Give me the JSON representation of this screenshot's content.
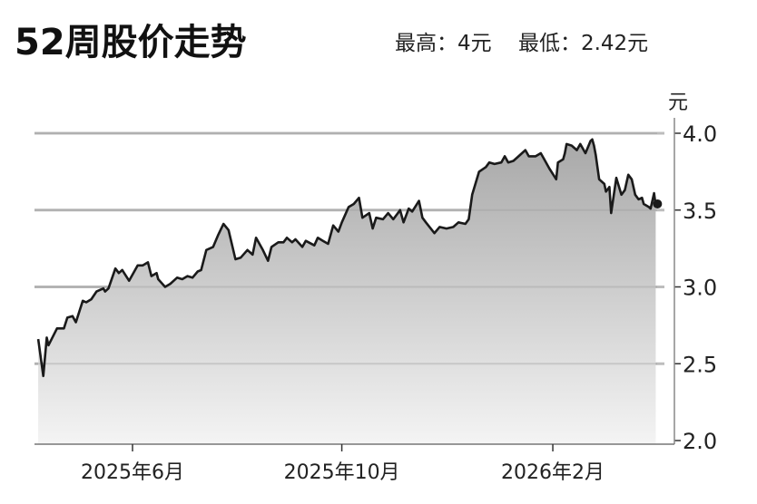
{
  "header": {
    "title": "52周股价走势",
    "high_label": "最高：4元",
    "low_label": "最低：2.42元"
  },
  "chart_data": {
    "type": "area",
    "title": "52周股价走势",
    "ylabel": "元",
    "ylim": [
      2.0,
      4.0
    ],
    "yticks": [
      "4.0",
      "3.5",
      "3.0",
      "2.5",
      "2.0"
    ],
    "ytick_values": [
      4.0,
      3.5,
      3.0,
      2.5,
      2.0
    ],
    "xticks": [
      {
        "date": "2025-06-01",
        "label": "2025年6月"
      },
      {
        "date": "2025-10-01",
        "label": "2025年10月"
      },
      {
        "date": "2026-02-01",
        "label": "2026年2月"
      }
    ],
    "grid": true,
    "colors": {
      "line": "#1a1a1a",
      "fill_top": "#a8a8a8",
      "fill_bottom": "#f4f4f4",
      "grid": "#bdbdbd"
    },
    "last_point": {
      "date": "2026-04-03",
      "value": 3.54
    },
    "points": [
      [
        "2025-04-07",
        2.66
      ],
      [
        "2025-04-10",
        2.42
      ],
      [
        "2025-04-12",
        2.67
      ],
      [
        "2025-04-13",
        2.62
      ],
      [
        "2025-04-18",
        2.73
      ],
      [
        "2025-04-22",
        2.73
      ],
      [
        "2025-04-24",
        2.8
      ],
      [
        "2025-04-27",
        2.81
      ],
      [
        "2025-04-29",
        2.77
      ],
      [
        "2025-05-03",
        2.91
      ],
      [
        "2025-05-05",
        2.9
      ],
      [
        "2025-05-08",
        2.92
      ],
      [
        "2025-05-11",
        2.97
      ],
      [
        "2025-05-15",
        2.99
      ],
      [
        "2025-05-16",
        2.97
      ],
      [
        "2025-05-18",
        2.99
      ],
      [
        "2025-05-22",
        3.12
      ],
      [
        "2025-05-24",
        3.09
      ],
      [
        "2025-05-26",
        3.11
      ],
      [
        "2025-05-30",
        3.04
      ],
      [
        "2025-06-04",
        3.14
      ],
      [
        "2025-06-07",
        3.14
      ],
      [
        "2025-06-10",
        3.16
      ],
      [
        "2025-06-12",
        3.07
      ],
      [
        "2025-06-15",
        3.09
      ],
      [
        "2025-06-16",
        3.05
      ],
      [
        "2025-06-20",
        3.0
      ],
      [
        "2025-06-23",
        3.02
      ],
      [
        "2025-06-27",
        3.06
      ],
      [
        "2025-06-30",
        3.05
      ],
      [
        "2025-07-03",
        3.07
      ],
      [
        "2025-07-06",
        3.06
      ],
      [
        "2025-07-09",
        3.1
      ],
      [
        "2025-07-11",
        3.11
      ],
      [
        "2025-07-14",
        3.24
      ],
      [
        "2025-07-18",
        3.26
      ],
      [
        "2025-07-21",
        3.34
      ],
      [
        "2025-07-24",
        3.41
      ],
      [
        "2025-07-27",
        3.37
      ],
      [
        "2025-07-31",
        3.18
      ],
      [
        "2025-08-03",
        3.19
      ],
      [
        "2025-08-07",
        3.24
      ],
      [
        "2025-08-10",
        3.21
      ],
      [
        "2025-08-12",
        3.32
      ],
      [
        "2025-08-16",
        3.24
      ],
      [
        "2025-08-19",
        3.17
      ],
      [
        "2025-08-21",
        3.26
      ],
      [
        "2025-08-25",
        3.29
      ],
      [
        "2025-08-28",
        3.29
      ],
      [
        "2025-08-30",
        3.32
      ],
      [
        "2025-09-02",
        3.29
      ],
      [
        "2025-09-04",
        3.31
      ],
      [
        "2025-09-08",
        3.26
      ],
      [
        "2025-09-10",
        3.3
      ],
      [
        "2025-09-15",
        3.27
      ],
      [
        "2025-09-17",
        3.32
      ],
      [
        "2025-09-20",
        3.3
      ],
      [
        "2025-09-23",
        3.28
      ],
      [
        "2025-09-26",
        3.4
      ],
      [
        "2025-09-29",
        3.36
      ],
      [
        "2025-10-01",
        3.42
      ],
      [
        "2025-10-05",
        3.52
      ],
      [
        "2025-10-08",
        3.54
      ],
      [
        "2025-10-11",
        3.58
      ],
      [
        "2025-10-13",
        3.45
      ],
      [
        "2025-10-17",
        3.48
      ],
      [
        "2025-10-19",
        3.38
      ],
      [
        "2025-10-21",
        3.45
      ],
      [
        "2025-10-25",
        3.44
      ],
      [
        "2025-10-28",
        3.48
      ],
      [
        "2025-10-31",
        3.44
      ],
      [
        "2025-11-04",
        3.5
      ],
      [
        "2025-11-06",
        3.42
      ],
      [
        "2025-11-09",
        3.51
      ],
      [
        "2025-11-11",
        3.49
      ],
      [
        "2025-11-15",
        3.56
      ],
      [
        "2025-11-17",
        3.45
      ],
      [
        "2025-11-19",
        3.42
      ],
      [
        "2025-11-24",
        3.35
      ],
      [
        "2025-11-27",
        3.39
      ],
      [
        "2025-12-01",
        3.38
      ],
      [
        "2025-12-05",
        3.39
      ],
      [
        "2025-12-08",
        3.42
      ],
      [
        "2025-12-12",
        3.41
      ],
      [
        "2025-12-14",
        3.44
      ],
      [
        "2025-12-16",
        3.6
      ],
      [
        "2025-12-20",
        3.75
      ],
      [
        "2025-12-24",
        3.78
      ],
      [
        "2025-12-26",
        3.81
      ],
      [
        "2025-12-29",
        3.8
      ],
      [
        "2026-01-02",
        3.81
      ],
      [
        "2026-01-04",
        3.85
      ],
      [
        "2026-01-06",
        3.81
      ],
      [
        "2026-01-09",
        3.82
      ],
      [
        "2026-01-11",
        3.84
      ],
      [
        "2026-01-16",
        3.89
      ],
      [
        "2026-01-18",
        3.85
      ],
      [
        "2026-01-22",
        3.85
      ],
      [
        "2026-01-25",
        3.87
      ],
      [
        "2026-01-27",
        3.83
      ],
      [
        "2026-01-30",
        3.77
      ],
      [
        "2026-02-03",
        3.7
      ],
      [
        "2026-02-04",
        3.81
      ],
      [
        "2026-02-07",
        3.83
      ],
      [
        "2026-02-08",
        3.87
      ],
      [
        "2026-02-09",
        3.93
      ],
      [
        "2026-02-12",
        3.92
      ],
      [
        "2026-02-15",
        3.89
      ],
      [
        "2026-02-17",
        3.93
      ],
      [
        "2026-02-20",
        3.87
      ],
      [
        "2026-02-23",
        3.95
      ],
      [
        "2026-02-24",
        3.96
      ],
      [
        "2026-02-25",
        3.92
      ],
      [
        "2026-02-26",
        3.86
      ],
      [
        "2026-02-28",
        3.7
      ],
      [
        "2026-03-03",
        3.67
      ],
      [
        "2026-03-04",
        3.62
      ],
      [
        "2026-03-06",
        3.65
      ],
      [
        "2026-03-07",
        3.48
      ],
      [
        "2026-03-10",
        3.71
      ],
      [
        "2026-03-13",
        3.6
      ],
      [
        "2026-03-15",
        3.63
      ],
      [
        "2026-03-17",
        3.73
      ],
      [
        "2026-03-19",
        3.7
      ],
      [
        "2026-03-21",
        3.6
      ],
      [
        "2026-03-23",
        3.57
      ],
      [
        "2026-03-25",
        3.58
      ],
      [
        "2026-03-26",
        3.54
      ],
      [
        "2026-03-29",
        3.52
      ],
      [
        "2026-03-30",
        3.51
      ],
      [
        "2026-04-01",
        3.61
      ],
      [
        "2026-04-02",
        3.53
      ]
    ]
  }
}
